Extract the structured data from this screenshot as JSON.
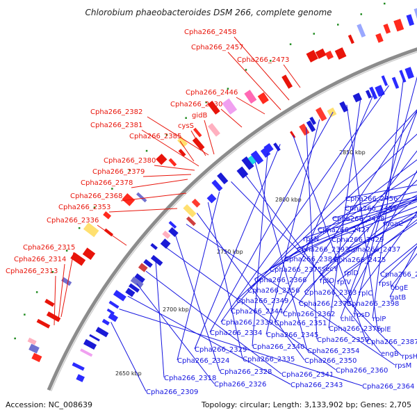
{
  "title": "Chlorobium phaeobacteroides DSM 266, complete genome",
  "accession": "Accession: NC_008639",
  "topology": "Topology: circular; Length: 3,133,902 bp; Genes: 2,705",
  "colors": {
    "forward_label": "#e8140a",
    "reverse_label": "#1414e0",
    "backbone": "#8c8c8c",
    "gc_marker": "#1f8a1f"
  },
  "kbp_ticks": [
    "2650 kbp",
    "2700 kbp",
    "2750 kbp",
    "2800 kbp",
    "2850 kbp"
  ],
  "forward_labels": [
    "Cpha266_2458",
    "Cpha266_2457",
    "Cpha266_2473",
    "Cpha266_2446",
    "Cpha266_2430",
    "Cpha266_2382",
    "gidB",
    "Cpha266_2381",
    "cysS",
    "Cpha266_2385",
    "Cpha266_2380",
    "Cpha266_2379",
    "Cpha266_2378",
    "Cpha266_2368",
    "Cpha266_2353",
    "Cpha266_2336",
    "Cpha266_2315",
    "Cpha266_2314",
    "Cpha266_2313"
  ],
  "reverse_labels": [
    "Cpha266_2456",
    "Cpha266_2451",
    "Cpha266_2438",
    "moaC",
    "Cpha266_2427",
    "rpsN",
    "Cpha266_2429",
    "Cpha266_2393",
    "Cpha266_2437",
    "Cpha266_2384",
    "Cpha266_2425",
    "Cpha266_2375",
    "secY",
    "rplD",
    "Cpha266_2434",
    "rplV",
    "rpsL",
    "Cpha266_2366",
    "rplO",
    "obgE",
    "Cpha266_2356",
    "Cpha266_2383",
    "rplC",
    "gatB",
    "Cpha266_2349",
    "Cpha266_2373",
    "Cpha266_2398",
    "Cpha266_2344",
    "Cpha266_2362",
    "chlL",
    "rpsD",
    "rplP",
    "Cpha266_2339",
    "Cpha266_2351",
    "Cpha266_2376",
    "rplE",
    "Cpha266_2334",
    "Cpha266_2345",
    "Cpha266_2359",
    "Cpha266_2387",
    "Cpha266_2329",
    "Cpha266_2340",
    "Cpha266_2354",
    "engB",
    "rpsH",
    "Cpha266_2324",
    "Cpha266_2335",
    "Cpha266_2350",
    "rpsM",
    "Cpha266_2328",
    "Cpha266_2360",
    "Cpha266_2318",
    "Cpha266_2341",
    "Cpha266_2326",
    "Cpha266_2343",
    "Cpha266_2364",
    "Cpha266_2309"
  ]
}
